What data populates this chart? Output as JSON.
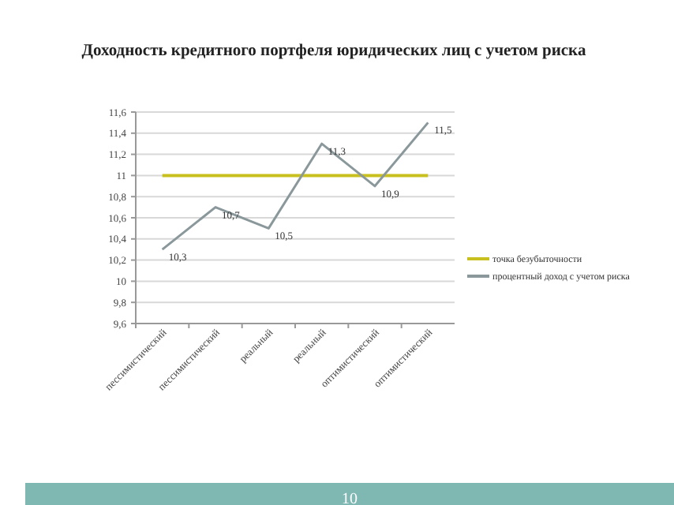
{
  "chart_data": {
    "type": "line",
    "title": "Доходность кредитного портфеля  юридических лиц с учетом риска",
    "categories": [
      "пессимистический",
      "пессимистический",
      "реальный",
      "реальный",
      "оптимистический",
      "оптимистический"
    ],
    "series": [
      {
        "name": "точка безубыточности",
        "color": "#c8c01e",
        "values": [
          11,
          11,
          11,
          11,
          11,
          11
        ]
      },
      {
        "name": "процентный доход с учетом риска",
        "color": "#8a989c",
        "values": [
          10.3,
          10.7,
          10.5,
          11.3,
          10.9,
          11.5
        ],
        "value_labels": [
          "10,3",
          "10,7",
          "10,5",
          "11,3",
          "10,9",
          "11,5"
        ]
      }
    ],
    "ylim": [
      9.6,
      11.6
    ],
    "yticks": [
      {
        "value": 9.6,
        "label": "9,6"
      },
      {
        "value": 9.8,
        "label": "9,8"
      },
      10,
      {
        "value": 10.2,
        "label": "10,2"
      },
      {
        "value": 10.4,
        "label": "10,4"
      },
      {
        "value": 10.6,
        "label": "10,6"
      },
      {
        "value": 10.8,
        "label": "10,8"
      },
      11,
      {
        "value": 11.2,
        "label": "11,2"
      },
      {
        "value": 11.4,
        "label": "11,4"
      },
      {
        "value": 11.6,
        "label": "11,6"
      }
    ],
    "grid": "y",
    "legend": "right",
    "marker": "none",
    "line_style": "solid",
    "annotations": [
      "10"
    ]
  }
}
